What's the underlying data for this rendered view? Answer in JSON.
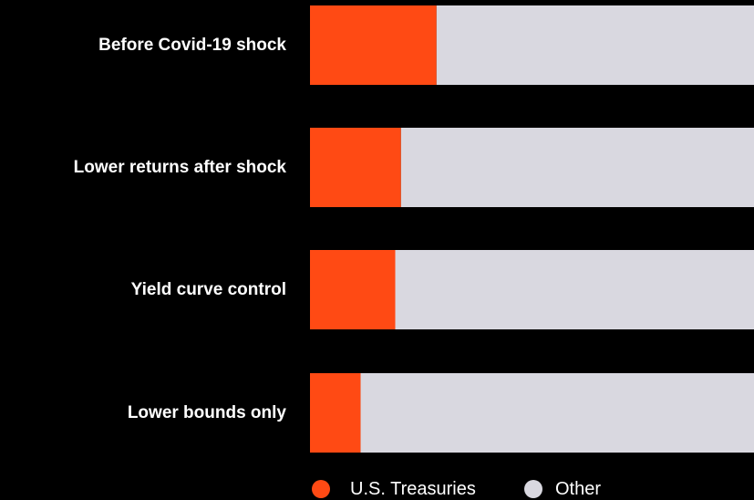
{
  "chart_data": {
    "type": "bar",
    "orientation": "horizontal",
    "stacked": true,
    "normalized": true,
    "categories": [
      "Before Covid-19 shock",
      "Lower returns after shock",
      "Yield curve control",
      "Lower bounds only"
    ],
    "series": [
      {
        "name": "U.S. Treasuries",
        "color": "#ff4a14",
        "values": [
          28.5,
          20.5,
          19.2,
          11.4
        ]
      },
      {
        "name": "Other",
        "color": "#d9d8e0",
        "values": [
          71.5,
          79.5,
          80.8,
          88.6
        ]
      }
    ],
    "xlim": [
      0,
      100
    ],
    "grid": false,
    "legend_position": "bottom"
  }
}
